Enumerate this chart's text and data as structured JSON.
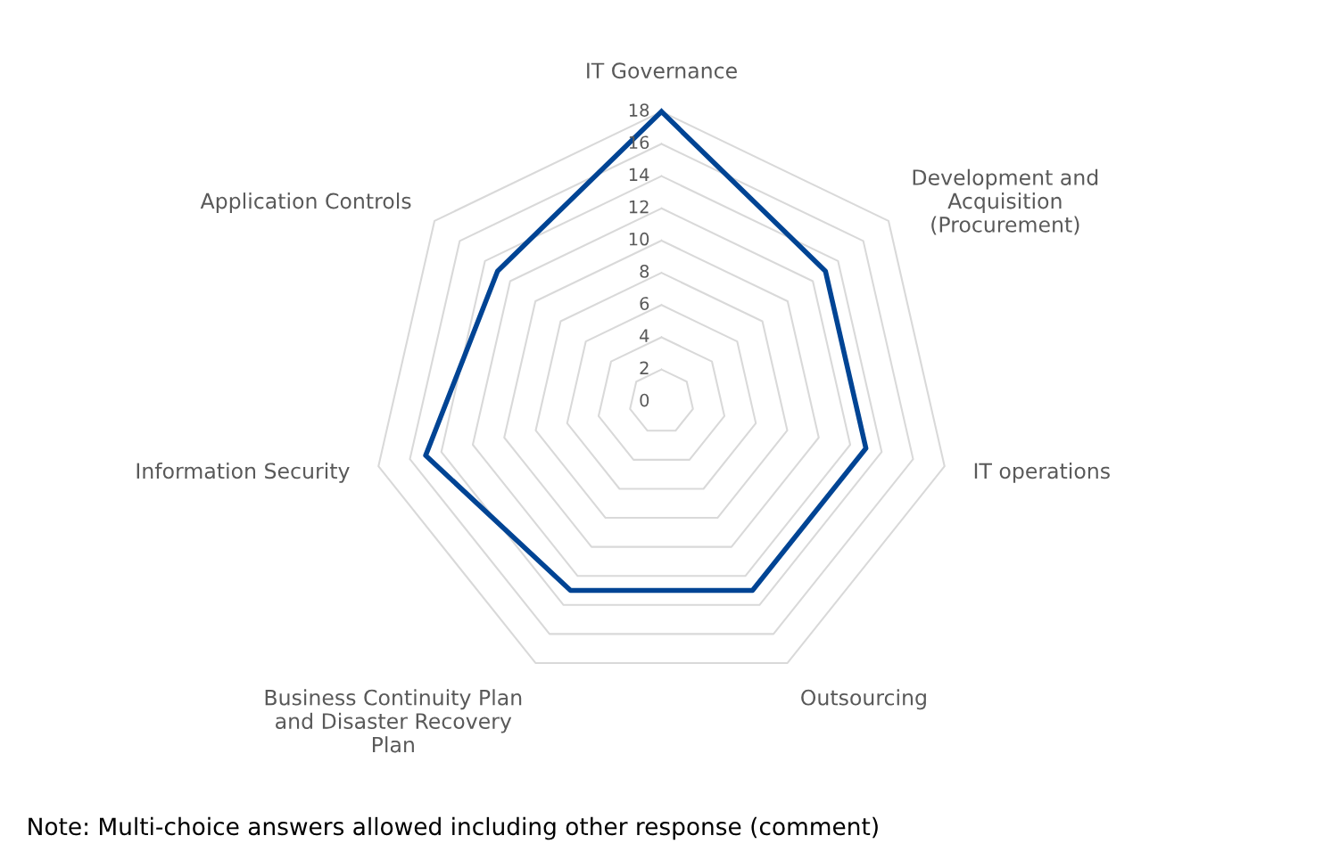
{
  "chart_data": {
    "type": "radar",
    "categories": [
      "IT Governance",
      "Development and\nAcquisition\n(Procurement)",
      "IT operations",
      "Outsourcing",
      "Business Continuity Plan\nand Disaster Recovery\nPlan",
      "Information Security",
      "Application Controls"
    ],
    "series": [
      {
        "color": "#004494",
        "values": [
          18,
          13,
          13,
          13,
          13,
          15,
          13
        ]
      }
    ],
    "ylim": [
      0,
      18
    ],
    "yticks": [
      0,
      2,
      4,
      6,
      8,
      10,
      12,
      14,
      16,
      18
    ],
    "grid": true,
    "annotations": [
      "Note: Multi-choice answers allowed including other response (comment)"
    ]
  }
}
